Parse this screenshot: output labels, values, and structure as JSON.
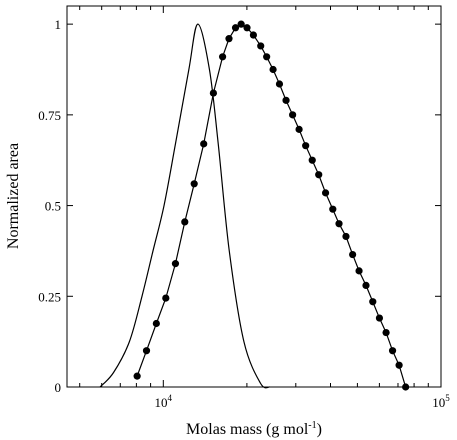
{
  "chart_data": {
    "type": "line",
    "xlabel": "Molas mass (g mol-1)",
    "xlabel_parts": {
      "main": "Molas mass (g mol",
      "sup": "-1",
      "close": ")"
    },
    "ylabel": "Normalized area",
    "x_scale": "log",
    "xlim": [
      4500,
      100000
    ],
    "ylim": [
      0,
      1.05
    ],
    "x_ticks": [
      {
        "value": 10000,
        "base": "10",
        "exp": "4"
      },
      {
        "value": 100000,
        "base": "10",
        "exp": "5"
      }
    ],
    "y_ticks": [
      {
        "value": 0,
        "label": "0"
      },
      {
        "value": 0.25,
        "label": "0.25"
      },
      {
        "value": 0.5,
        "label": "0.5"
      },
      {
        "value": 0.75,
        "label": "0.75"
      },
      {
        "value": 1,
        "label": "1"
      }
    ],
    "grid": false,
    "series": [
      {
        "style": "line",
        "color": "#000000",
        "x": [
          5920,
          6620,
          7550,
          8380,
          9180,
          10060,
          11060,
          12360,
          13320,
          14660,
          15770,
          17280,
          19510,
          22400,
          24170
        ],
        "y": [
          0.0,
          0.04,
          0.125,
          0.25,
          0.375,
          0.5,
          0.67,
          0.875,
          1.0,
          0.875,
          0.67,
          0.375,
          0.125,
          0.01,
          0.0
        ]
      },
      {
        "style": "line+markers",
        "color": "#000000",
        "x": [
          8050,
          8700,
          9440,
          10210,
          11060,
          11950,
          12920,
          13980,
          15150,
          16350,
          17240,
          18200,
          19070,
          20020,
          21110,
          22430,
          23560,
          24850,
          26200,
          27670,
          29220,
          30830,
          32560,
          34380,
          36280,
          38400,
          40770,
          42930,
          45480,
          48060,
          50690,
          53690,
          56800,
          60020,
          63420,
          66920,
          70650,
          74580
        ],
        "y": [
          0.03,
          0.1,
          0.175,
          0.245,
          0.34,
          0.455,
          0.56,
          0.67,
          0.81,
          0.91,
          0.96,
          0.99,
          1.0,
          0.99,
          0.97,
          0.94,
          0.91,
          0.875,
          0.835,
          0.79,
          0.75,
          0.71,
          0.665,
          0.625,
          0.585,
          0.535,
          0.49,
          0.45,
          0.415,
          0.365,
          0.32,
          0.28,
          0.235,
          0.19,
          0.15,
          0.1,
          0.06,
          0.0
        ]
      }
    ]
  }
}
